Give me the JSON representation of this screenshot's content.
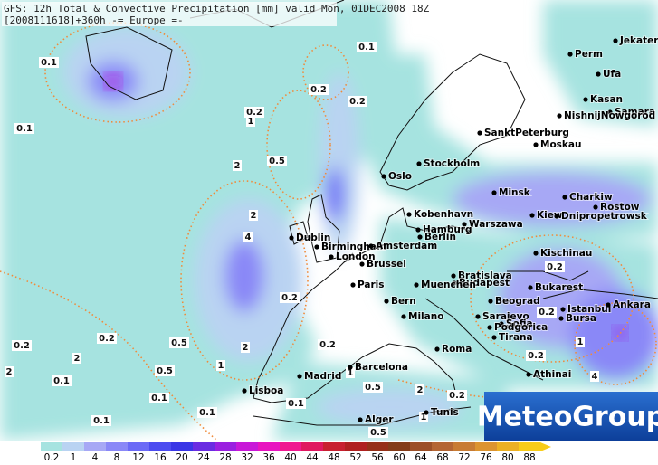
{
  "header": {
    "line1": "GFS: 12h Total & Convective Precipitation [mm] valid Mon, 01DEC2008 18Z",
    "line2": "[2008111618]+360h -= Europe =-"
  },
  "cities": [
    "Jekaterinb",
    "Perm",
    "Ufa",
    "Kasan",
    "Samara",
    "NishnijNowgorod",
    "SanktPeterburg",
    "Moskau",
    "Oslo",
    "Stockholm",
    "Minsk",
    "Charkiw",
    "Rostow",
    "Kiew",
    "Dnipropetrowsk",
    "Kobenhavn",
    "Warszawa",
    "Hamburg",
    "Berlin",
    "Dublin",
    "Birmingham",
    "Amsterdam",
    "London",
    "Brussel",
    "Kischinau",
    "Bratislava",
    "Budapest",
    "Bukarest",
    "Muenchen",
    "Paris",
    "Beograd",
    "Bern",
    "Milano",
    "Sarajevo",
    "Istanbul",
    "Ankara",
    "Bursa",
    "Sofia",
    "Podgorica",
    "Tirana",
    "Roma",
    "Madrid",
    "Barcelona",
    "Athinai",
    "Lisboa",
    "Alger",
    "Tunis"
  ],
  "contour_labels": [
    "0.1",
    "0.1",
    "0.1",
    "0.1",
    "0.1",
    "0.1",
    "0.1",
    "0.1",
    "0.2",
    "0.2",
    "0.2",
    "0.2",
    "0.2",
    "0.2",
    "0.2",
    "0.2",
    "0.2",
    "0.2",
    "0.2",
    "0.5",
    "0.5",
    "0.5",
    "0.5",
    "0.5",
    "1",
    "1",
    "1",
    "1",
    "1",
    "2",
    "2",
    "2",
    "2",
    "2",
    "2",
    "4",
    "4"
  ],
  "legend": {
    "values": [
      0.2,
      1,
      4,
      8,
      12,
      16,
      20,
      24,
      28,
      32,
      36,
      40,
      44,
      48,
      52,
      56,
      60,
      64,
      68,
      72,
      76,
      80,
      88
    ],
    "colors": [
      "#a6e3e0",
      "#b9d3f2",
      "#a7a8f5",
      "#8a88f7",
      "#6b6af6",
      "#4c4cf0",
      "#3a36e6",
      "#6a2ce2",
      "#9a20e0",
      "#c818d8",
      "#e814c0",
      "#f01890",
      "#e01860",
      "#c82030",
      "#b02020",
      "#963018",
      "#843c18",
      "#9c5028",
      "#b46634",
      "#c87c34",
      "#dc9430",
      "#ecb024",
      "#f8cc18"
    ]
  },
  "logo": "MeteoGroup"
}
